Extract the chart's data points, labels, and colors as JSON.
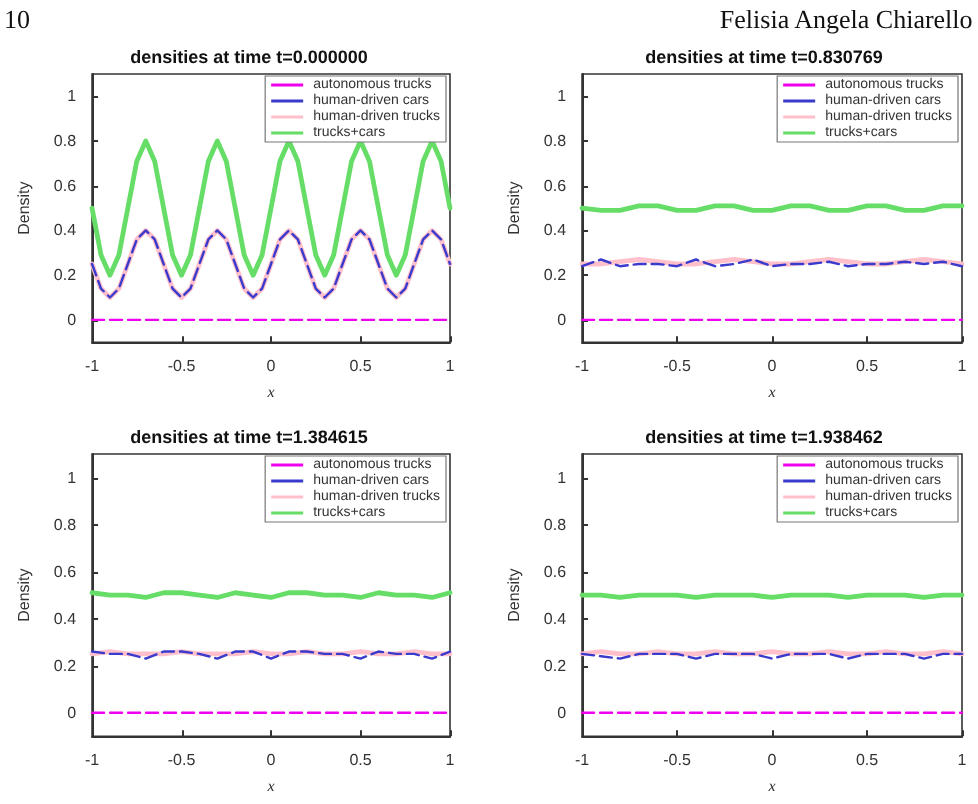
{
  "chart_data": [
    {
      "type": "line",
      "title": "densities at time t=0.000000",
      "xlabel": "x",
      "ylabel": "Density",
      "annotations": [
        "10"
      ],
      "xlim": [
        -1,
        1
      ],
      "xticks": [
        -1,
        -0.5,
        0,
        0.5,
        1
      ],
      "ylim": [
        -0.1,
        1.1
      ],
      "yticks": [
        0,
        0.2,
        0.4,
        0.6,
        0.8,
        1
      ],
      "grid": false,
      "legend": "top right",
      "marker": "none",
      "x": [
        -1,
        -0.95,
        -0.9,
        -0.85,
        -0.8,
        -0.75,
        -0.7,
        -0.65,
        -0.6,
        -0.55,
        -0.5,
        -0.45,
        -0.4,
        -0.35,
        -0.3,
        -0.25,
        -0.2,
        -0.15,
        -0.1,
        -0.05,
        0,
        0.05,
        0.1,
        0.15,
        0.2,
        0.25,
        0.3,
        0.35,
        0.4,
        0.45,
        0.5,
        0.55,
        0.6,
        0.65,
        0.7,
        0.75,
        0.8,
        0.85,
        0.9,
        0.95,
        1
      ],
      "series": [
        {
          "name": "autonomous trucks",
          "color": "#ee00ee",
          "line_style": "dashed",
          "values": [
            0,
            0,
            0,
            0,
            0,
            0,
            0,
            0,
            0,
            0,
            0,
            0,
            0,
            0,
            0,
            0,
            0,
            0,
            0,
            0,
            0,
            0,
            0,
            0,
            0,
            0,
            0,
            0,
            0,
            0,
            0,
            0,
            0,
            0,
            0,
            0,
            0,
            0,
            0,
            0,
            0
          ]
        },
        {
          "name": "human-driven cars",
          "color": "#3a3acc",
          "line_style": "dashed",
          "values": [
            0.25,
            0.14,
            0.1,
            0.14,
            0.25,
            0.36,
            0.4,
            0.36,
            0.25,
            0.14,
            0.1,
            0.14,
            0.25,
            0.36,
            0.4,
            0.36,
            0.25,
            0.14,
            0.1,
            0.14,
            0.25,
            0.36,
            0.4,
            0.36,
            0.25,
            0.14,
            0.1,
            0.14,
            0.25,
            0.36,
            0.4,
            0.36,
            0.25,
            0.14,
            0.1,
            0.14,
            0.25,
            0.36,
            0.4,
            0.36,
            0.25
          ]
        },
        {
          "name": "human-driven trucks",
          "color": "#ffc0cb",
          "line_style": "solid",
          "values": [
            0.25,
            0.14,
            0.1,
            0.14,
            0.25,
            0.36,
            0.4,
            0.36,
            0.25,
            0.14,
            0.1,
            0.14,
            0.25,
            0.36,
            0.4,
            0.36,
            0.25,
            0.14,
            0.1,
            0.14,
            0.25,
            0.36,
            0.4,
            0.36,
            0.25,
            0.14,
            0.1,
            0.14,
            0.25,
            0.36,
            0.4,
            0.36,
            0.25,
            0.14,
            0.1,
            0.14,
            0.25,
            0.36,
            0.4,
            0.36,
            0.25
          ]
        },
        {
          "name": "trucks+cars",
          "color": "#66dd66",
          "line_style": "solid",
          "values": [
            0.5,
            0.29,
            0.2,
            0.29,
            0.5,
            0.71,
            0.8,
            0.71,
            0.5,
            0.29,
            0.2,
            0.29,
            0.5,
            0.71,
            0.8,
            0.71,
            0.5,
            0.29,
            0.2,
            0.29,
            0.5,
            0.71,
            0.8,
            0.71,
            0.5,
            0.29,
            0.2,
            0.29,
            0.5,
            0.71,
            0.8,
            0.71,
            0.5,
            0.29,
            0.2,
            0.29,
            0.5,
            0.71,
            0.8,
            0.71,
            0.5
          ]
        }
      ]
    },
    {
      "type": "line",
      "title": "densities at time t=0.830769",
      "xlabel": "x",
      "ylabel": "Density",
      "annotations": [
        "Felisia Angela Chiarello"
      ],
      "xlim": [
        -1,
        1
      ],
      "xticks": [
        -1,
        -0.5,
        0,
        0.5,
        1
      ],
      "ylim": [
        -0.1,
        1.1
      ],
      "yticks": [
        0,
        0.2,
        0.4,
        0.6,
        0.8,
        1
      ],
      "grid": false,
      "legend": "top right",
      "marker": "none",
      "x": [
        -1,
        -0.9,
        -0.8,
        -0.7,
        -0.6,
        -0.5,
        -0.4,
        -0.3,
        -0.2,
        -0.1,
        0,
        0.1,
        0.2,
        0.3,
        0.4,
        0.5,
        0.6,
        0.7,
        0.8,
        0.9,
        1
      ],
      "series": [
        {
          "name": "autonomous trucks",
          "color": "#ee00ee",
          "line_style": "dashed",
          "values": [
            0,
            0,
            0,
            0,
            0,
            0,
            0,
            0,
            0,
            0,
            0,
            0,
            0,
            0,
            0,
            0,
            0,
            0,
            0,
            0,
            0
          ]
        },
        {
          "name": "human-driven cars",
          "color": "#3a3acc",
          "line_style": "dashed",
          "values": [
            0.24,
            0.27,
            0.24,
            0.25,
            0.25,
            0.24,
            0.27,
            0.24,
            0.25,
            0.27,
            0.24,
            0.25,
            0.25,
            0.26,
            0.24,
            0.25,
            0.25,
            0.26,
            0.25,
            0.26,
            0.24
          ]
        },
        {
          "name": "human-driven trucks",
          "color": "#ffc0cb",
          "line_style": "solid",
          "values": [
            0.25,
            0.25,
            0.26,
            0.27,
            0.26,
            0.25,
            0.25,
            0.26,
            0.27,
            0.26,
            0.25,
            0.25,
            0.26,
            0.27,
            0.26,
            0.25,
            0.25,
            0.26,
            0.27,
            0.26,
            0.25
          ]
        },
        {
          "name": "trucks+cars",
          "color": "#66dd66",
          "line_style": "solid",
          "values": [
            0.5,
            0.49,
            0.49,
            0.51,
            0.51,
            0.49,
            0.49,
            0.51,
            0.51,
            0.49,
            0.49,
            0.51,
            0.51,
            0.49,
            0.49,
            0.51,
            0.51,
            0.49,
            0.49,
            0.51,
            0.51
          ]
        }
      ]
    },
    {
      "type": "line",
      "title": "densities at time t=1.384615",
      "xlabel": "x",
      "ylabel": "Density",
      "xlim": [
        -1,
        1
      ],
      "xticks": [
        -1,
        -0.5,
        0,
        0.5,
        1
      ],
      "ylim": [
        -0.1,
        1.1
      ],
      "yticks": [
        0,
        0.2,
        0.4,
        0.6,
        0.8,
        1
      ],
      "grid": false,
      "legend": "top right",
      "marker": "none",
      "x": [
        -1,
        -0.9,
        -0.8,
        -0.7,
        -0.6,
        -0.5,
        -0.4,
        -0.3,
        -0.2,
        -0.1,
        0,
        0.1,
        0.2,
        0.3,
        0.4,
        0.5,
        0.6,
        0.7,
        0.8,
        0.9,
        1
      ],
      "series": [
        {
          "name": "autonomous trucks",
          "color": "#ee00ee",
          "line_style": "dashed",
          "values": [
            0,
            0,
            0,
            0,
            0,
            0,
            0,
            0,
            0,
            0,
            0,
            0,
            0,
            0,
            0,
            0,
            0,
            0,
            0,
            0,
            0
          ]
        },
        {
          "name": "human-driven cars",
          "color": "#3a3acc",
          "line_style": "dashed",
          "values": [
            0.26,
            0.25,
            0.25,
            0.23,
            0.26,
            0.26,
            0.25,
            0.23,
            0.26,
            0.26,
            0.23,
            0.26,
            0.26,
            0.25,
            0.25,
            0.23,
            0.26,
            0.25,
            0.25,
            0.23,
            0.26
          ]
        },
        {
          "name": "human-driven trucks",
          "color": "#ffc0cb",
          "line_style": "solid",
          "values": [
            0.25,
            0.26,
            0.25,
            0.25,
            0.25,
            0.26,
            0.25,
            0.25,
            0.25,
            0.26,
            0.25,
            0.25,
            0.26,
            0.25,
            0.25,
            0.26,
            0.25,
            0.25,
            0.26,
            0.25,
            0.25
          ]
        },
        {
          "name": "trucks+cars",
          "color": "#66dd66",
          "line_style": "solid",
          "values": [
            0.51,
            0.5,
            0.5,
            0.49,
            0.51,
            0.51,
            0.5,
            0.49,
            0.51,
            0.5,
            0.49,
            0.51,
            0.51,
            0.5,
            0.5,
            0.49,
            0.51,
            0.5,
            0.5,
            0.49,
            0.51
          ]
        }
      ]
    },
    {
      "type": "line",
      "title": "densities at time t=1.938462",
      "xlabel": "x",
      "ylabel": "Density",
      "xlim": [
        -1,
        1
      ],
      "xticks": [
        -1,
        -0.5,
        0,
        0.5,
        1
      ],
      "ylim": [
        -0.1,
        1.1
      ],
      "yticks": [
        0,
        0.2,
        0.4,
        0.6,
        0.8,
        1
      ],
      "grid": false,
      "legend": "top right",
      "marker": "none",
      "x": [
        -1,
        -0.9,
        -0.8,
        -0.7,
        -0.6,
        -0.5,
        -0.4,
        -0.3,
        -0.2,
        -0.1,
        0,
        0.1,
        0.2,
        0.3,
        0.4,
        0.5,
        0.6,
        0.7,
        0.8,
        0.9,
        1
      ],
      "series": [
        {
          "name": "autonomous trucks",
          "color": "#ee00ee",
          "line_style": "dashed",
          "values": [
            0,
            0,
            0,
            0,
            0,
            0,
            0,
            0,
            0,
            0,
            0,
            0,
            0,
            0,
            0,
            0,
            0,
            0,
            0,
            0,
            0
          ]
        },
        {
          "name": "human-driven cars",
          "color": "#3a3acc",
          "line_style": "dashed",
          "values": [
            0.25,
            0.24,
            0.23,
            0.25,
            0.25,
            0.25,
            0.23,
            0.25,
            0.25,
            0.25,
            0.23,
            0.25,
            0.25,
            0.25,
            0.23,
            0.25,
            0.25,
            0.25,
            0.23,
            0.25,
            0.25
          ]
        },
        {
          "name": "human-driven trucks",
          "color": "#ffc0cb",
          "line_style": "solid",
          "values": [
            0.25,
            0.26,
            0.25,
            0.25,
            0.26,
            0.25,
            0.25,
            0.26,
            0.25,
            0.25,
            0.26,
            0.25,
            0.25,
            0.26,
            0.25,
            0.25,
            0.26,
            0.25,
            0.25,
            0.26,
            0.25
          ]
        },
        {
          "name": "trucks+cars",
          "color": "#66dd66",
          "line_style": "solid",
          "values": [
            0.5,
            0.5,
            0.49,
            0.5,
            0.5,
            0.5,
            0.49,
            0.5,
            0.5,
            0.5,
            0.49,
            0.5,
            0.5,
            0.5,
            0.49,
            0.5,
            0.5,
            0.5,
            0.49,
            0.5,
            0.5
          ]
        }
      ]
    }
  ]
}
